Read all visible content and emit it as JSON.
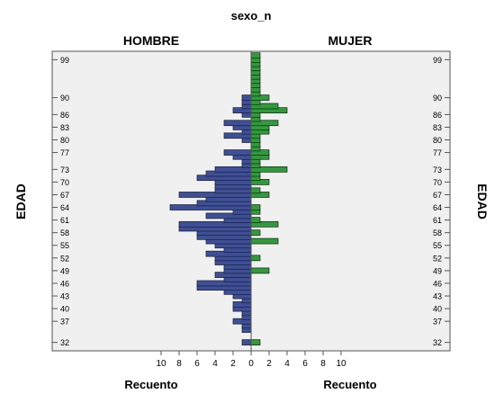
{
  "chart_data": {
    "type": "bar",
    "title": "sexo_n",
    "orientation": "horizontal-population-pyramid",
    "panels": [
      {
        "name": "HOMBRE",
        "direction": "left",
        "color": "#3d4f9b"
      },
      {
        "name": "MUJER",
        "direction": "right",
        "color": "#2e9c3a"
      }
    ],
    "xlabel_left": "Recuento",
    "xlabel_right": "Recuento",
    "ylabel_left": "EDAD",
    "ylabel_right": "EDAD",
    "xlim": [
      0,
      10
    ],
    "xticks": [
      10,
      8,
      6,
      4,
      2,
      0,
      2,
      4,
      6,
      8,
      10
    ],
    "ylim": [
      30,
      101
    ],
    "yticks": [
      99,
      90,
      86,
      83,
      80,
      77,
      73,
      70,
      67,
      64,
      61,
      58,
      55,
      52,
      49,
      46,
      43,
      40,
      37,
      32
    ],
    "x": [
      32,
      34,
      35,
      36,
      37,
      38,
      39,
      40,
      41,
      42,
      43,
      44,
      45,
      46,
      47,
      48,
      49,
      50,
      51,
      52,
      53,
      54,
      55,
      56,
      57,
      58,
      59,
      60,
      61,
      62,
      63,
      64,
      65,
      66,
      67,
      68,
      69,
      70,
      71,
      72,
      73,
      74,
      75,
      76,
      77,
      78,
      79,
      80,
      81,
      82,
      83,
      84,
      85,
      86,
      87,
      88,
      89,
      90,
      91,
      92,
      93,
      94,
      95,
      96,
      97,
      98,
      99,
      100
    ],
    "series": [
      {
        "name": "HOMBRE",
        "values": [
          1,
          0,
          1,
          1,
          2,
          1,
          1,
          2,
          2,
          1,
          2,
          3,
          6,
          6,
          3,
          4,
          3,
          3,
          4,
          4,
          5,
          3,
          4,
          5,
          6,
          6,
          8,
          8,
          3,
          5,
          2,
          9,
          6,
          5,
          8,
          4,
          4,
          4,
          6,
          5,
          4,
          1,
          1,
          2,
          3,
          0,
          0,
          1,
          3,
          1,
          2,
          3,
          0,
          1,
          2,
          1,
          1,
          1,
          0,
          0,
          0,
          0,
          0,
          0,
          0,
          0,
          0,
          0
        ]
      },
      {
        "name": "MUJER",
        "values": [
          1,
          0,
          0,
          0,
          0,
          0,
          0,
          0,
          0,
          0,
          0,
          0,
          0,
          0,
          0,
          0,
          2,
          0,
          0,
          1,
          0,
          0,
          0,
          3,
          0,
          1,
          0,
          3,
          1,
          0,
          1,
          1,
          0,
          0,
          2,
          1,
          0,
          2,
          1,
          1,
          4,
          1,
          1,
          2,
          2,
          1,
          1,
          1,
          1,
          2,
          2,
          3,
          1,
          1,
          4,
          3,
          1,
          2,
          1,
          1,
          1,
          1,
          1,
          1,
          1,
          1,
          1,
          1
        ]
      }
    ]
  }
}
